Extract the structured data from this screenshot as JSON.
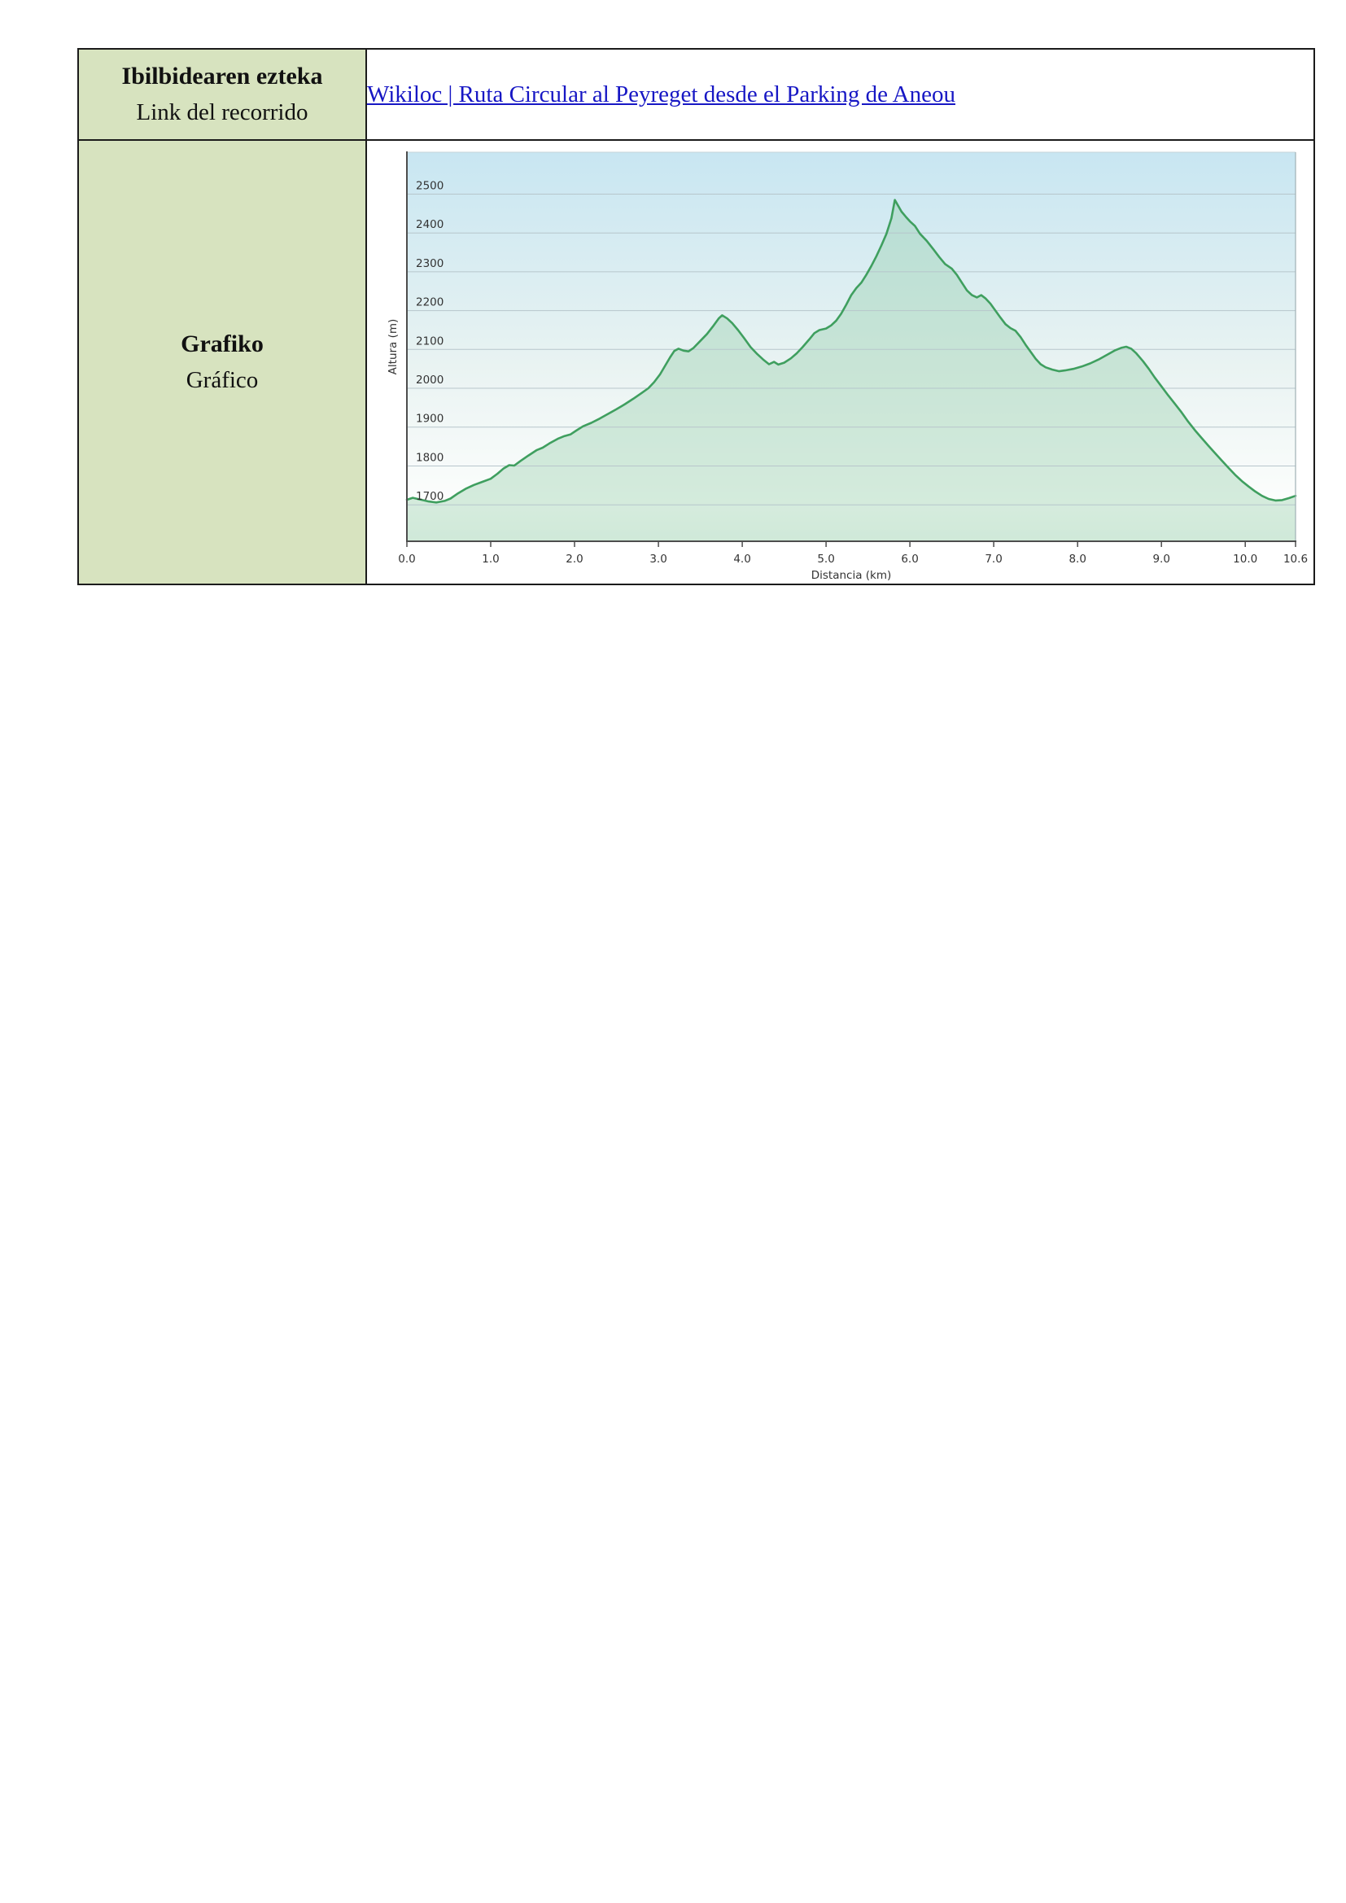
{
  "table": {
    "rows": [
      {
        "header": {
          "line1": "Ibilbidearen ezteka",
          "line2": "Link del recorrido"
        },
        "link": {
          "text": "Wikiloc | Ruta Circular al Peyreget desde el Parking de Aneou",
          "color": "#1717c4"
        }
      },
      {
        "header": {
          "line1": "Grafiko",
          "line2": "Gráfico"
        }
      }
    ],
    "header_bg": "#d7e3bf",
    "border_color": "#1b1b1b"
  },
  "chart_data": {
    "type": "area",
    "title": "",
    "xlabel": "Distancia (km)",
    "ylabel": "Altura (m)",
    "xlim": [
      0,
      10.6
    ],
    "ylim": [
      1606,
      2608
    ],
    "grid": true,
    "legend_position": "none",
    "line_color": "#3f9f5f",
    "fill_color": "rgba(148,205,168,0.38)",
    "gridline_color": "#b7c6cb",
    "axis_color": "#4d4d4d",
    "bg_gradient": [
      {
        "offset": "0%",
        "color": "#c8e6f2"
      },
      {
        "offset": "55%",
        "color": "#e9f3f2"
      },
      {
        "offset": "92%",
        "color": "#fdfefd"
      },
      {
        "offset": "100%",
        "color": "#f4faf6"
      }
    ],
    "y_ticks": [
      1700,
      1800,
      1900,
      2000,
      2100,
      2200,
      2300,
      2400,
      2500
    ],
    "x_ticks": [
      {
        "v": 0,
        "label": "0.0"
      },
      {
        "v": 1,
        "label": "1.0"
      },
      {
        "v": 2,
        "label": "2.0"
      },
      {
        "v": 3,
        "label": "3.0"
      },
      {
        "v": 4,
        "label": "4.0"
      },
      {
        "v": 5,
        "label": "5.0"
      },
      {
        "v": 6,
        "label": "6.0"
      },
      {
        "v": 7,
        "label": "7.0"
      },
      {
        "v": 8,
        "label": "8.0"
      },
      {
        "v": 9,
        "label": "9.0"
      },
      {
        "v": 10,
        "label": "10.0"
      },
      {
        "v": 10.6,
        "label": "10.6"
      }
    ],
    "points": [
      [
        0.0,
        1713
      ],
      [
        0.07,
        1718
      ],
      [
        0.15,
        1714
      ],
      [
        0.25,
        1709
      ],
      [
        0.35,
        1706
      ],
      [
        0.45,
        1710
      ],
      [
        0.52,
        1716
      ],
      [
        0.6,
        1728
      ],
      [
        0.7,
        1741
      ],
      [
        0.8,
        1751
      ],
      [
        0.9,
        1759
      ],
      [
        1.0,
        1767
      ],
      [
        1.08,
        1780
      ],
      [
        1.15,
        1793
      ],
      [
        1.22,
        1802
      ],
      [
        1.28,
        1801
      ],
      [
        1.35,
        1812
      ],
      [
        1.45,
        1827
      ],
      [
        1.55,
        1841
      ],
      [
        1.62,
        1847
      ],
      [
        1.7,
        1858
      ],
      [
        1.8,
        1870
      ],
      [
        1.88,
        1877
      ],
      [
        1.95,
        1881
      ],
      [
        2.02,
        1891
      ],
      [
        2.1,
        1902
      ],
      [
        2.2,
        1911
      ],
      [
        2.3,
        1922
      ],
      [
        2.4,
        1934
      ],
      [
        2.5,
        1946
      ],
      [
        2.6,
        1959
      ],
      [
        2.7,
        1973
      ],
      [
        2.8,
        1988
      ],
      [
        2.88,
        2000
      ],
      [
        2.95,
        2016
      ],
      [
        3.02,
        2036
      ],
      [
        3.08,
        2058
      ],
      [
        3.14,
        2080
      ],
      [
        3.19,
        2096
      ],
      [
        3.24,
        2102
      ],
      [
        3.3,
        2097
      ],
      [
        3.36,
        2095
      ],
      [
        3.42,
        2104
      ],
      [
        3.5,
        2122
      ],
      [
        3.58,
        2140
      ],
      [
        3.66,
        2162
      ],
      [
        3.72,
        2180
      ],
      [
        3.76,
        2188
      ],
      [
        3.82,
        2180
      ],
      [
        3.88,
        2168
      ],
      [
        3.95,
        2150
      ],
      [
        4.02,
        2130
      ],
      [
        4.1,
        2106
      ],
      [
        4.18,
        2088
      ],
      [
        4.25,
        2074
      ],
      [
        4.32,
        2062
      ],
      [
        4.38,
        2068
      ],
      [
        4.43,
        2061
      ],
      [
        4.5,
        2066
      ],
      [
        4.58,
        2077
      ],
      [
        4.65,
        2090
      ],
      [
        4.72,
        2106
      ],
      [
        4.8,
        2126
      ],
      [
        4.86,
        2142
      ],
      [
        4.92,
        2150
      ],
      [
        5.0,
        2154
      ],
      [
        5.06,
        2162
      ],
      [
        5.12,
        2174
      ],
      [
        5.18,
        2192
      ],
      [
        5.24,
        2215
      ],
      [
        5.3,
        2240
      ],
      [
        5.36,
        2258
      ],
      [
        5.42,
        2272
      ],
      [
        5.48,
        2292
      ],
      [
        5.54,
        2315
      ],
      [
        5.6,
        2340
      ],
      [
        5.66,
        2368
      ],
      [
        5.72,
        2398
      ],
      [
        5.78,
        2438
      ],
      [
        5.82,
        2485
      ],
      [
        5.86,
        2470
      ],
      [
        5.9,
        2455
      ],
      [
        5.95,
        2442
      ],
      [
        6.0,
        2430
      ],
      [
        6.06,
        2418
      ],
      [
        6.12,
        2398
      ],
      [
        6.2,
        2380
      ],
      [
        6.28,
        2358
      ],
      [
        6.35,
        2338
      ],
      [
        6.42,
        2320
      ],
      [
        6.5,
        2308
      ],
      [
        6.56,
        2292
      ],
      [
        6.62,
        2272
      ],
      [
        6.68,
        2252
      ],
      [
        6.74,
        2240
      ],
      [
        6.8,
        2234
      ],
      [
        6.85,
        2240
      ],
      [
        6.9,
        2232
      ],
      [
        6.96,
        2218
      ],
      [
        7.02,
        2200
      ],
      [
        7.08,
        2182
      ],
      [
        7.14,
        2165
      ],
      [
        7.2,
        2155
      ],
      [
        7.26,
        2148
      ],
      [
        7.32,
        2132
      ],
      [
        7.38,
        2112
      ],
      [
        7.44,
        2094
      ],
      [
        7.5,
        2076
      ],
      [
        7.56,
        2062
      ],
      [
        7.62,
        2054
      ],
      [
        7.7,
        2048
      ],
      [
        7.78,
        2044
      ],
      [
        7.85,
        2046
      ],
      [
        7.95,
        2050
      ],
      [
        8.05,
        2056
      ],
      [
        8.15,
        2064
      ],
      [
        8.25,
        2074
      ],
      [
        8.35,
        2086
      ],
      [
        8.45,
        2098
      ],
      [
        8.52,
        2104
      ],
      [
        8.58,
        2107
      ],
      [
        8.64,
        2102
      ],
      [
        8.7,
        2090
      ],
      [
        8.78,
        2070
      ],
      [
        8.85,
        2050
      ],
      [
        8.92,
        2028
      ],
      [
        9.0,
        2005
      ],
      [
        9.08,
        1982
      ],
      [
        9.16,
        1960
      ],
      [
        9.24,
        1938
      ],
      [
        9.32,
        1914
      ],
      [
        9.4,
        1892
      ],
      [
        9.48,
        1872
      ],
      [
        9.56,
        1852
      ],
      [
        9.64,
        1833
      ],
      [
        9.72,
        1814
      ],
      [
        9.8,
        1795
      ],
      [
        9.88,
        1777
      ],
      [
        9.96,
        1761
      ],
      [
        10.04,
        1747
      ],
      [
        10.12,
        1734
      ],
      [
        10.2,
        1723
      ],
      [
        10.28,
        1715
      ],
      [
        10.36,
        1711
      ],
      [
        10.44,
        1712
      ],
      [
        10.52,
        1717
      ],
      [
        10.6,
        1723
      ]
    ]
  }
}
